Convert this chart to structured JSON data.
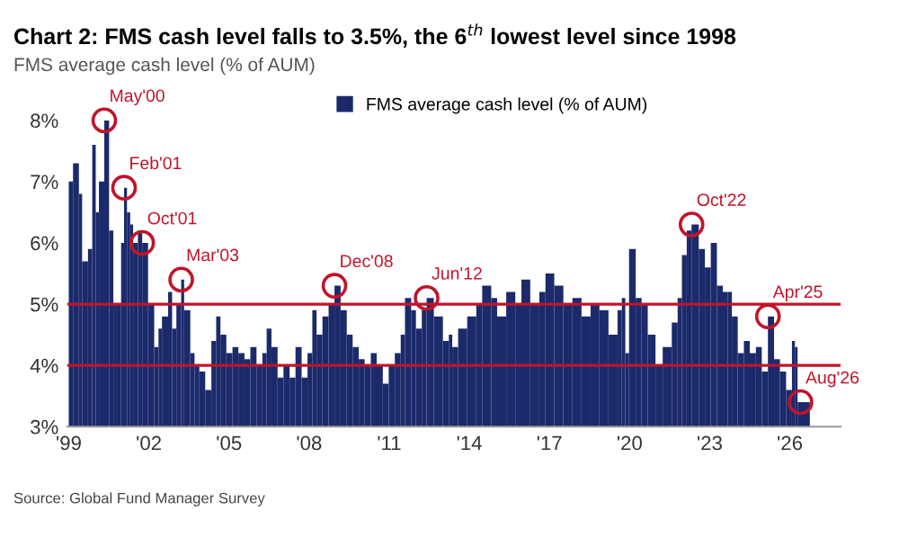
{
  "chart_data": {
    "type": "bar",
    "title": "Chart 2: FMS cash level falls to 3.5%, the 6$^{th}$ lowest level since 1998",
    "subtitle": "FMS average cash level (% of AUM)",
    "x": [
      1999.0,
      1999.16,
      1999.38,
      1999.5,
      1999.72,
      1999.88,
      2000.01,
      2000.13,
      2000.33,
      2000.51,
      2000.67,
      2000.8,
      2000.96,
      2001.07,
      2001.18,
      2001.3,
      2001.41,
      2001.59,
      2001.75,
      2001.97,
      2002.2,
      2002.36,
      2002.49,
      2002.72,
      2002.87,
      2003.03,
      2003.21,
      2003.32,
      2003.55,
      2003.71,
      2003.89,
      2004.11,
      2004.34,
      2004.52,
      2004.68,
      2004.9,
      2005.13,
      2005.35,
      2005.58,
      2005.8,
      2006.03,
      2006.25,
      2006.41,
      2006.59,
      2006.82,
      2007.04,
      2007.27,
      2007.49,
      2007.72,
      2007.94,
      2008.12,
      2008.28,
      2008.5,
      2008.73,
      2008.95,
      2009.18,
      2009.41,
      2009.63,
      2009.86,
      2010.08,
      2010.31,
      2010.53,
      2010.76,
      2010.98,
      2011.21,
      2011.43,
      2011.59,
      2011.82,
      2012.0,
      2012.22,
      2012.4,
      2012.67,
      2013.01,
      2013.23,
      2013.36,
      2013.58,
      2013.92,
      2014.26,
      2014.48,
      2014.82,
      2015.04,
      2015.38,
      2015.72,
      2015.95,
      2016.28,
      2016.62,
      2016.85,
      2017.18,
      2017.52,
      2017.86,
      2018.2,
      2018.54,
      2018.87,
      2019.21,
      2019.55,
      2019.71,
      2019.84,
      2019.98,
      2020.23,
      2020.45,
      2020.68,
      2020.97,
      2021.24,
      2021.58,
      2021.8,
      2021.96,
      2022.14,
      2022.32,
      2022.59,
      2022.82,
      2023.04,
      2023.27,
      2023.49,
      2023.67,
      2023.83,
      2024.05,
      2024.28,
      2024.5,
      2024.73,
      2024.95,
      2025.18,
      2025.41,
      2025.63,
      2025.86,
      2026.08,
      2026.19,
      2026.29,
      2026.52
    ],
    "series": [
      {
        "name": "FMS average cash level (% of AUM)",
        "color": "#1b2a6b",
        "values": [
          7.0,
          7.3,
          6.8,
          5.7,
          5.9,
          7.6,
          6.5,
          7.0,
          8.0,
          6.2,
          5.0,
          5.0,
          6.0,
          6.9,
          6.5,
          6.3,
          6.0,
          6.2,
          6.0,
          5.0,
          4.3,
          4.6,
          4.8,
          5.2,
          4.6,
          5.0,
          5.4,
          4.9,
          4.2,
          4.0,
          3.9,
          3.6,
          4.4,
          4.8,
          4.5,
          4.2,
          4.3,
          4.2,
          4.1,
          4.3,
          4.0,
          4.2,
          4.6,
          4.3,
          3.8,
          4.0,
          3.8,
          4.3,
          3.8,
          4.2,
          4.9,
          4.5,
          4.8,
          5.0,
          5.3,
          4.9,
          4.5,
          4.3,
          4.1,
          4.0,
          4.2,
          4.0,
          3.7,
          4.0,
          4.2,
          4.5,
          5.1,
          4.9,
          4.6,
          4.9,
          5.1,
          4.8,
          4.4,
          4.5,
          4.3,
          4.6,
          4.8,
          5.0,
          5.3,
          5.1,
          4.8,
          5.2,
          5.0,
          5.4,
          5.0,
          5.2,
          5.5,
          5.3,
          5.0,
          5.1,
          4.8,
          5.0,
          4.9,
          4.5,
          4.9,
          5.1,
          4.2,
          5.9,
          5.1,
          5.0,
          4.5,
          4.0,
          4.3,
          4.7,
          5.1,
          5.8,
          6.2,
          6.3,
          5.9,
          5.6,
          6.0,
          5.3,
          5.2,
          5.2,
          4.8,
          4.2,
          4.4,
          4.2,
          4.3,
          3.9,
          4.8,
          4.1,
          3.9,
          3.6,
          4.4,
          4.3,
          3.4,
          3.4
        ]
      }
    ],
    "xlim": [
      1998.95,
      2027.9
    ],
    "ylim": [
      3,
      8
    ],
    "xticks": [
      {
        "value": 1999,
        "label": "'99"
      },
      {
        "value": 2002,
        "label": "'02"
      },
      {
        "value": 2005,
        "label": "'05"
      },
      {
        "value": 2008,
        "label": "'08"
      },
      {
        "value": 2011,
        "label": "'11"
      },
      {
        "value": 2014,
        "label": "'14"
      },
      {
        "value": 2017,
        "label": "'17"
      },
      {
        "value": 2020,
        "label": "'20"
      },
      {
        "value": 2023,
        "label": "'23"
      },
      {
        "value": 2026,
        "label": "'26"
      }
    ],
    "yticks": [
      {
        "value": 3,
        "label": "3%"
      },
      {
        "value": 4,
        "label": "4%"
      },
      {
        "value": 5,
        "label": "5%"
      },
      {
        "value": 6,
        "label": "6%"
      },
      {
        "value": 7,
        "label": "7%"
      },
      {
        "value": 8,
        "label": "8%"
      }
    ],
    "ref_lines": [
      {
        "axis": "y",
        "value": 5,
        "color": "#c0142b"
      },
      {
        "axis": "y",
        "value": 4,
        "color": "#c0142b"
      }
    ],
    "annotations": [
      {
        "text": "May'00",
        "x": 2000.33,
        "y": 8.0
      },
      {
        "text": "Feb'01",
        "x": 2001.07,
        "y": 6.9
      },
      {
        "text": "Oct'01",
        "x": 2001.75,
        "y": 6.0
      },
      {
        "text": "Mar'03",
        "x": 2003.21,
        "y": 5.4
      },
      {
        "text": "Dec'08",
        "x": 2008.95,
        "y": 5.3
      },
      {
        "text": "Jun'12",
        "x": 2012.4,
        "y": 5.1
      },
      {
        "text": "Oct'22",
        "x": 2022.32,
        "y": 6.3
      },
      {
        "text": "Apr'25",
        "x": 2025.18,
        "y": 4.8
      },
      {
        "text": "Aug'26",
        "x": 2026.4,
        "y": 3.4
      },
      "Source: Global Fund Manager Survey"
    ],
    "legend": "top",
    "grid": false
  }
}
